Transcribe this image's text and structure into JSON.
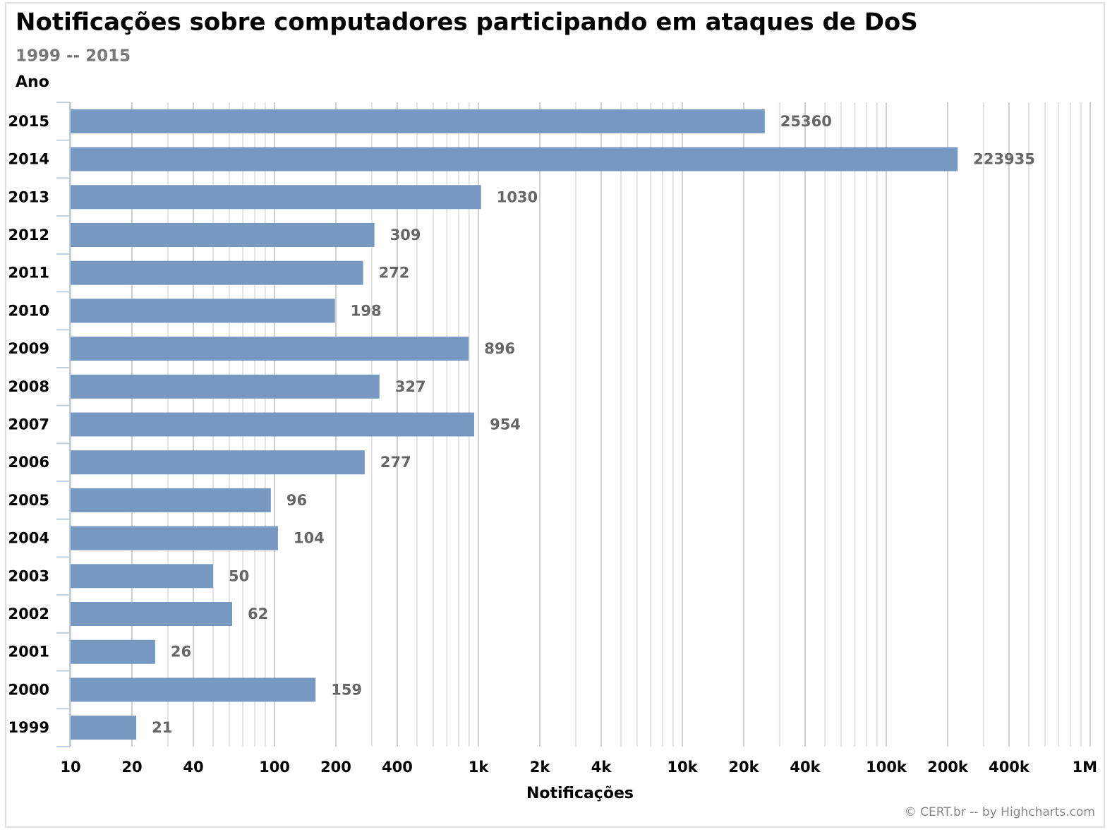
{
  "chart_data": {
    "type": "bar",
    "orientation": "horizontal",
    "title": "Notificações sobre computadores participando em ataques de DoS",
    "subtitle": "1999 -- 2015",
    "y_axis_title": "Ano",
    "x_axis_title": "Notificações",
    "credits": "© CERT.br -- by Highcharts.com",
    "categories": [
      "2015",
      "2014",
      "2013",
      "2012",
      "2011",
      "2010",
      "2009",
      "2008",
      "2007",
      "2006",
      "2005",
      "2004",
      "2003",
      "2002",
      "2001",
      "2000",
      "1999"
    ],
    "values": [
      25360,
      223935,
      1030,
      309,
      272,
      198,
      896,
      327,
      954,
      277,
      96,
      104,
      50,
      62,
      26,
      159,
      21
    ],
    "color": "#7799c1",
    "xscale": "log",
    "xlim": [
      10,
      1000000
    ],
    "xticks": [
      10,
      20,
      40,
      100,
      200,
      400,
      {
        "value": 1000,
        "label": "1k"
      },
      {
        "value": 2000,
        "label": "2k"
      },
      {
        "value": 4000,
        "label": "4k"
      },
      {
        "value": 10000,
        "label": "10k"
      },
      {
        "value": 20000,
        "label": "20k"
      },
      {
        "value": 40000,
        "label": "40k"
      },
      {
        "value": 100000,
        "label": "100k"
      },
      {
        "value": 200000,
        "label": "200k"
      },
      {
        "value": 400000,
        "label": "400k"
      },
      {
        "value": 1000000,
        "label": "1M"
      }
    ],
    "minor_xticks": [
      30,
      50,
      60,
      70,
      80,
      90,
      300,
      500,
      600,
      700,
      800,
      900,
      3000,
      5000,
      6000,
      7000,
      8000,
      9000,
      30000,
      50000,
      60000,
      70000,
      80000,
      90000,
      300000,
      500000,
      600000,
      700000,
      800000,
      900000
    ],
    "grid": true
  }
}
